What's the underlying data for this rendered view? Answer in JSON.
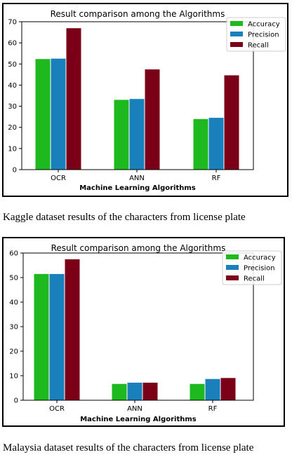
{
  "colors": {
    "accuracy": "#1eb91e",
    "precision": "#1a80bb",
    "recall": "#7b0017"
  },
  "captions": [
    "Kaggle dataset results of the characters from license plate",
    "Malaysia dataset results of the characters from license plate"
  ],
  "chart_data": [
    {
      "type": "bar",
      "title": "Result comparison among the Algorithms",
      "xlabel": "Machine Learning Algorithms",
      "ylabel": "",
      "categories": [
        "OCR",
        "ANN",
        "RF"
      ],
      "series": [
        {
          "name": "Accuracy",
          "values": [
            52.5,
            33.2,
            24.1
          ]
        },
        {
          "name": "Precision",
          "values": [
            52.7,
            33.6,
            24.7
          ]
        },
        {
          "name": "Recall",
          "values": [
            67.1,
            47.6,
            44.8
          ]
        }
      ],
      "ylim": [
        0,
        70
      ],
      "yticks": [
        0,
        10,
        20,
        30,
        40,
        50,
        60,
        70
      ],
      "grid": false,
      "legend": "top-right"
    },
    {
      "type": "bar",
      "title": "Result comparison among the Algorithms",
      "xlabel": "Machine Learning Algorithms",
      "ylabel": "",
      "categories": [
        "OCR",
        "ANN",
        "RF"
      ],
      "series": [
        {
          "name": "Accuracy",
          "values": [
            51.6,
            6.8,
            6.8
          ]
        },
        {
          "name": "Precision",
          "values": [
            51.6,
            7.3,
            8.8
          ]
        },
        {
          "name": "Recall",
          "values": [
            57.6,
            7.3,
            9.2
          ]
        }
      ],
      "ylim": [
        0,
        60
      ],
      "yticks": [
        0,
        10,
        20,
        30,
        40,
        50,
        60
      ],
      "grid": false,
      "legend": "top-right"
    }
  ]
}
